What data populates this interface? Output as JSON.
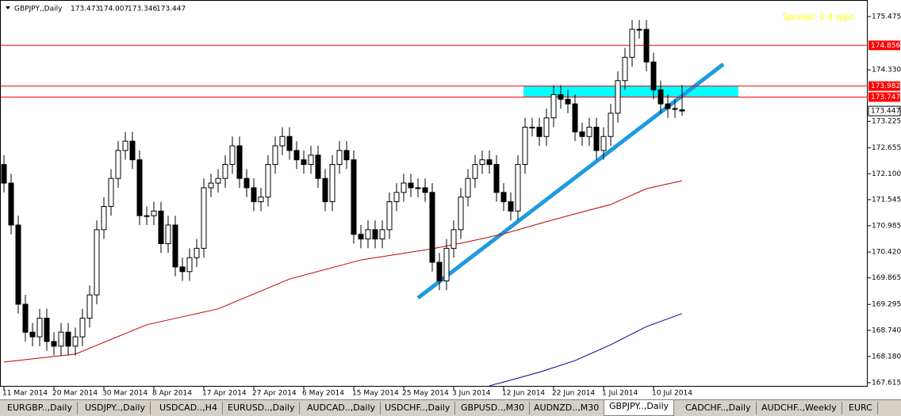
{
  "chart_data": {
    "type": "candlestick",
    "symbol": "GBPJPY,,Daily",
    "spread_text": "Spread: 1.4 pips.",
    "categories": [
      "11 Mar 2014",
      null,
      null,
      null,
      null,
      null,
      null,
      "20 Mar 2014",
      null,
      null,
      null,
      null,
      null,
      null,
      "30 Mar 2014",
      null,
      null,
      null,
      null,
      null,
      null,
      "8 Apr 2014",
      null,
      null,
      null,
      null,
      null,
      null,
      "17 Apr 2014",
      null,
      null,
      null,
      null,
      null,
      null,
      "27 Apr 2014",
      null,
      null,
      null,
      null,
      null,
      null,
      "6 May 2014",
      null,
      null,
      null,
      null,
      null,
      null,
      "15 May 2014",
      null,
      null,
      null,
      null,
      null,
      null,
      "25 May 2014",
      null,
      null,
      null,
      null,
      null,
      null,
      "3 Jun 2014",
      null,
      null,
      null,
      null,
      null,
      null,
      "12 Jun 2014",
      null,
      null,
      null,
      null,
      null,
      null,
      "22 Jun 2014",
      null,
      null,
      null,
      null,
      null,
      null,
      "1 Jul 2014",
      null,
      null,
      null,
      null,
      null,
      null,
      "10 Jul 2014",
      null,
      null,
      null,
      null
    ],
    "ohlc": [
      [
        172.3,
        172.5,
        171.7,
        171.9
      ],
      [
        171.9,
        172.1,
        170.8,
        171.0
      ],
      [
        171.0,
        171.2,
        169.1,
        169.3
      ],
      [
        169.3,
        169.5,
        168.5,
        168.7
      ],
      [
        168.7,
        168.9,
        168.4,
        168.6
      ],
      [
        168.6,
        169.2,
        168.4,
        169.0
      ],
      [
        169.0,
        169.2,
        168.3,
        168.5
      ],
      [
        168.5,
        168.7,
        168.2,
        168.4
      ],
      [
        168.4,
        168.9,
        168.2,
        168.7
      ],
      [
        168.7,
        168.9,
        168.2,
        168.4
      ],
      [
        168.4,
        168.8,
        168.2,
        168.6
      ],
      [
        168.6,
        169.2,
        168.4,
        169.0
      ],
      [
        169.0,
        169.7,
        168.8,
        169.5
      ],
      [
        169.5,
        171.1,
        169.3,
        170.9
      ],
      [
        170.9,
        171.6,
        170.7,
        171.4
      ],
      [
        171.4,
        172.2,
        171.2,
        172.0
      ],
      [
        172.0,
        172.8,
        171.8,
        172.6
      ],
      [
        172.6,
        173.0,
        172.4,
        172.8
      ],
      [
        172.8,
        173.0,
        172.2,
        172.4
      ],
      [
        172.4,
        172.6,
        171.0,
        171.2
      ],
      [
        171.2,
        171.4,
        171.0,
        171.2
      ],
      [
        171.2,
        171.5,
        171.0,
        171.3
      ],
      [
        171.3,
        171.5,
        170.4,
        170.6
      ],
      [
        170.6,
        171.2,
        170.4,
        171.0
      ],
      [
        171.0,
        171.2,
        169.9,
        170.1
      ],
      [
        170.1,
        170.3,
        169.8,
        170.0
      ],
      [
        170.0,
        170.5,
        169.8,
        170.3
      ],
      [
        170.3,
        170.7,
        170.1,
        170.5
      ],
      [
        170.5,
        172.0,
        170.3,
        171.8
      ],
      [
        171.8,
        172.1,
        171.6,
        171.9
      ],
      [
        171.9,
        172.2,
        171.7,
        172.0
      ],
      [
        172.0,
        172.5,
        171.8,
        172.3
      ],
      [
        172.3,
        172.9,
        172.1,
        172.7
      ],
      [
        172.7,
        172.9,
        171.8,
        172.0
      ],
      [
        172.0,
        172.2,
        171.6,
        171.8
      ],
      [
        171.8,
        172.0,
        171.3,
        171.5
      ],
      [
        171.5,
        171.8,
        171.3,
        171.6
      ],
      [
        171.6,
        172.5,
        171.4,
        172.3
      ],
      [
        172.3,
        172.9,
        172.1,
        172.7
      ],
      [
        172.7,
        173.1,
        172.5,
        172.9
      ],
      [
        172.9,
        173.1,
        172.4,
        172.6
      ],
      [
        172.6,
        172.8,
        172.2,
        172.4
      ],
      [
        172.4,
        172.6,
        172.1,
        172.3
      ],
      [
        172.3,
        172.7,
        172.1,
        172.5
      ],
      [
        172.5,
        172.7,
        171.8,
        172.0
      ],
      [
        172.0,
        172.2,
        171.3,
        171.5
      ],
      [
        171.5,
        172.5,
        171.3,
        172.3
      ],
      [
        172.3,
        172.8,
        172.1,
        172.6
      ],
      [
        172.6,
        172.8,
        172.2,
        172.4
      ],
      [
        172.4,
        172.6,
        170.6,
        170.8
      ],
      [
        170.8,
        171.0,
        170.5,
        170.7
      ],
      [
        170.7,
        171.1,
        170.5,
        170.9
      ],
      [
        170.9,
        171.1,
        170.5,
        170.7
      ],
      [
        170.7,
        171.1,
        170.5,
        170.9
      ],
      [
        170.9,
        171.7,
        170.7,
        171.5
      ],
      [
        171.5,
        171.9,
        171.3,
        171.7
      ],
      [
        171.7,
        172.1,
        171.5,
        171.9
      ],
      [
        171.9,
        172.1,
        171.6,
        171.8
      ],
      [
        171.8,
        172.0,
        171.6,
        171.8
      ],
      [
        171.8,
        172.0,
        171.5,
        171.7
      ],
      [
        171.7,
        171.9,
        170.0,
        170.2
      ],
      [
        170.2,
        170.4,
        169.6,
        169.8
      ],
      [
        169.8,
        170.7,
        169.6,
        170.5
      ],
      [
        170.5,
        171.1,
        170.3,
        170.9
      ],
      [
        170.9,
        171.8,
        170.7,
        171.6
      ],
      [
        171.6,
        172.2,
        171.4,
        172.0
      ],
      [
        172.0,
        172.5,
        171.8,
        172.3
      ],
      [
        172.3,
        172.6,
        172.1,
        172.4
      ],
      [
        172.4,
        172.6,
        172.1,
        172.3
      ],
      [
        172.3,
        172.5,
        171.5,
        171.7
      ],
      [
        171.7,
        171.9,
        171.3,
        171.5
      ],
      [
        171.5,
        171.7,
        171.1,
        171.3
      ],
      [
        171.3,
        172.5,
        171.1,
        172.3
      ],
      [
        172.3,
        173.3,
        172.1,
        173.1
      ],
      [
        173.1,
        173.3,
        172.9,
        173.1
      ],
      [
        173.1,
        173.3,
        172.7,
        172.9
      ],
      [
        172.9,
        173.5,
        172.7,
        173.3
      ],
      [
        173.3,
        174.0,
        173.1,
        173.8
      ],
      [
        173.8,
        174.0,
        173.5,
        173.7
      ],
      [
        173.7,
        173.9,
        173.4,
        173.6
      ],
      [
        173.6,
        173.8,
        172.8,
        173.0
      ],
      [
        173.0,
        173.2,
        172.7,
        172.9
      ],
      [
        172.9,
        173.3,
        172.7,
        173.1
      ],
      [
        173.1,
        173.3,
        172.4,
        172.6
      ],
      [
        172.6,
        173.1,
        172.4,
        172.9
      ],
      [
        172.9,
        173.6,
        172.7,
        173.4
      ],
      [
        173.4,
        174.3,
        173.2,
        174.1
      ],
      [
        174.1,
        174.8,
        173.9,
        174.6
      ],
      [
        174.6,
        175.4,
        174.4,
        175.2
      ],
      [
        175.2,
        175.4,
        175.0,
        175.2
      ],
      [
        175.2,
        175.4,
        174.3,
        174.5
      ],
      [
        174.5,
        174.7,
        173.7,
        173.9
      ],
      [
        173.9,
        174.1,
        173.4,
        173.6
      ],
      [
        173.6,
        173.8,
        173.3,
        173.5
      ],
      [
        173.5,
        173.7,
        173.3,
        173.5
      ],
      [
        173.473,
        174.007,
        173.346,
        173.447
      ]
    ],
    "series": [
      {
        "color": "#c00000",
        "x": [
          0,
          10,
          20,
          25,
          30,
          40,
          50,
          60,
          65,
          70,
          75,
          80,
          85,
          90,
          95
        ],
        "values": [
          168.06,
          168.23,
          168.86,
          169.03,
          169.2,
          169.84,
          170.25,
          170.49,
          170.64,
          170.81,
          171.03,
          171.24,
          171.44,
          171.78,
          171.95
        ]
      },
      {
        "color": "#00008b",
        "x": [
          68,
          70,
          75,
          80,
          85,
          90,
          95
        ],
        "values": [
          167.55,
          167.63,
          167.84,
          168.09,
          168.43,
          168.82,
          169.1
        ]
      }
    ],
    "levels": [
      174.856,
      173.982,
      173.747
    ],
    "level_color": "#ff0000",
    "ylim": [
      167.53,
      175.83
    ],
    "yticks": [
      175.475,
      {
        "value": 174.33,
        "label": "174.330"
      },
      173.225,
      172.655,
      {
        "value": 172.1,
        "label": "172.100"
      },
      171.545,
      170.985,
      {
        "value": 170.42,
        "label": "170.420"
      },
      169.865,
      169.295,
      {
        "value": 168.74,
        "label": "168.740"
      },
      {
        "value": 168.18,
        "label": "168.180"
      },
      167.615
    ]
  },
  "tabs": [
    "EURGBP..,Daily",
    "USDJPY..,Daily",
    "USDCAD..,H4",
    "EURUSD..,Daily",
    "AUDCAD..,Daily",
    "USDCHF..,Daily",
    "GBPUSD..,M30",
    "AUDNZD..,M30",
    "GBPJPY..,Daily",
    "CADCHF..,Daily",
    "AUDCHF..,Weekly",
    "EURC"
  ],
  "active_tab": 8
}
